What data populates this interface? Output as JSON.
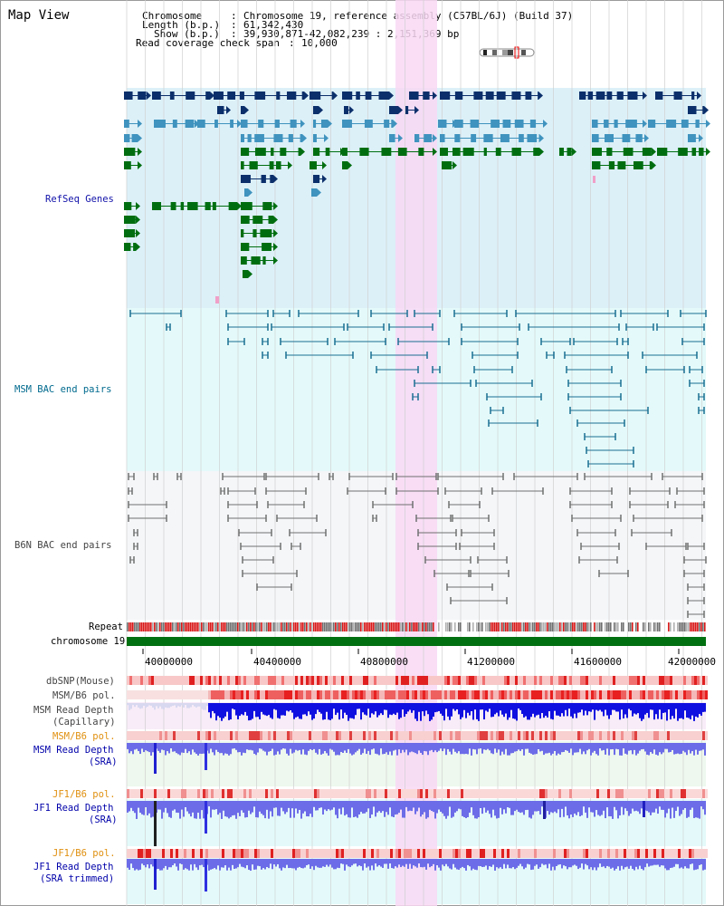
{
  "title": "Map View",
  "header": {
    "chromosome_label": "Chromosome",
    "chromosome_value": "Chromosome 19, reference assembly (C57BL/6J) (Build 37)",
    "length_label": "Length (b.p.)",
    "length_value": "61,342,430",
    "show_label": "Show (b.p.)",
    "show_value": "39,930,871-42,082,239 : 2,151,369 bp",
    "coverage_label": "Read coverage check span",
    "coverage_value": "10,000"
  },
  "tracks": {
    "refseq": "RefSeq Genes",
    "msm_bac": "MSM BAC end pairs",
    "b6n_bac": "B6N BAC end pairs",
    "repeat": "Repeat",
    "chromosome": "chromosome 19",
    "dbsnp": "dbSNP(Mouse)",
    "msm_b6_pol_1": "MSM/B6 pol.",
    "msm_read_depth_cap_1": "MSM Read Depth",
    "msm_read_depth_cap_2": "(Capillary)",
    "msm_b6_pol_2": "MSM/B6 pol.",
    "msm_read_depth_sra_1": "MSM Read Depth",
    "msm_read_depth_sra_2": "(SRA)",
    "jf1_b6_pol_1": "JF1/B6 pol.",
    "jf1_read_depth_sra_1": "JF1 Read Depth",
    "jf1_read_depth_sra_2": "(SRA)",
    "jf1_b6_pol_2": "JF1/B6 pol.",
    "jf1_read_depth_trim_1": "JF1 Read Depth",
    "jf1_read_depth_trim_2": "(SRA trimmed)"
  },
  "axis": {
    "ticks": [
      "40000000",
      "40400000",
      "40800000",
      "41200000",
      "41600000",
      "42000000"
    ]
  },
  "colors": {
    "refseq_bg": "#dcf0f8",
    "msm_bg": "#e4fafa",
    "b6n_bg": "#f4f6f8",
    "highlight": "#f8d8f4",
    "gene_dark": "#0b2f6a",
    "gene_mid": "#3f93be",
    "gene_green": "#006e10",
    "bac_teal": "#1a6f93",
    "bac_gray": "#707070",
    "chromosome_bar": "#007010",
    "depth_blue": "#1010e0",
    "depth_light": "#6c6ce8"
  }
}
